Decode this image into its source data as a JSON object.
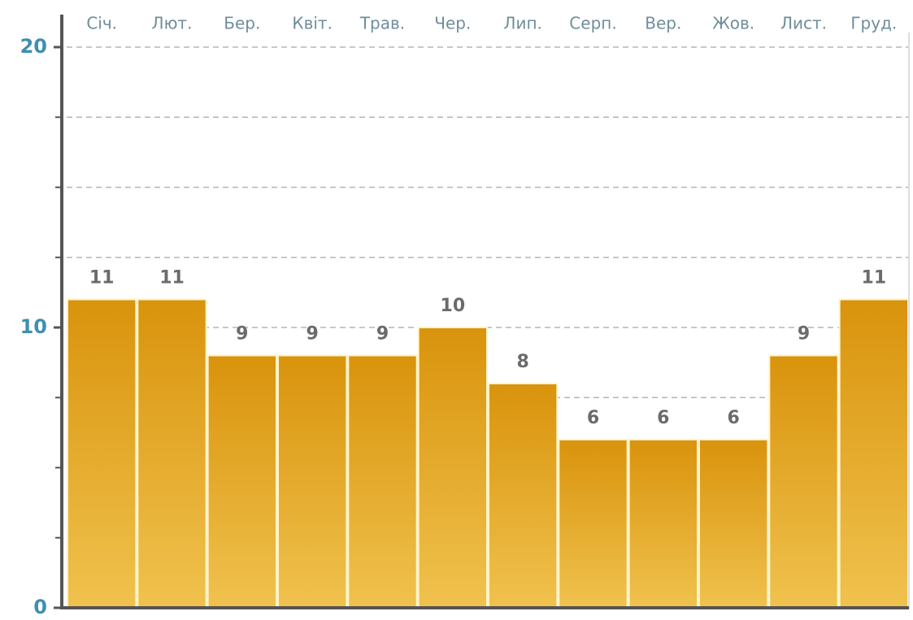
{
  "chart_data": {
    "type": "bar",
    "categories": [
      "Січ.",
      "Лют.",
      "Бер.",
      "Квіт.",
      "Трав.",
      "Чер.",
      "Лип.",
      "Серп.",
      "Вер.",
      "Жов.",
      "Лист.",
      "Груд."
    ],
    "values": [
      11,
      11,
      9,
      9,
      9,
      10,
      8,
      6,
      6,
      6,
      9,
      11
    ],
    "color": "#e3a52a",
    "ylim": [
      0,
      20
    ],
    "yticks": [
      0,
      10,
      20
    ],
    "yticks_minor": [
      2.5,
      5,
      7.5,
      12.5,
      15,
      17.5
    ],
    "grid": true
  }
}
